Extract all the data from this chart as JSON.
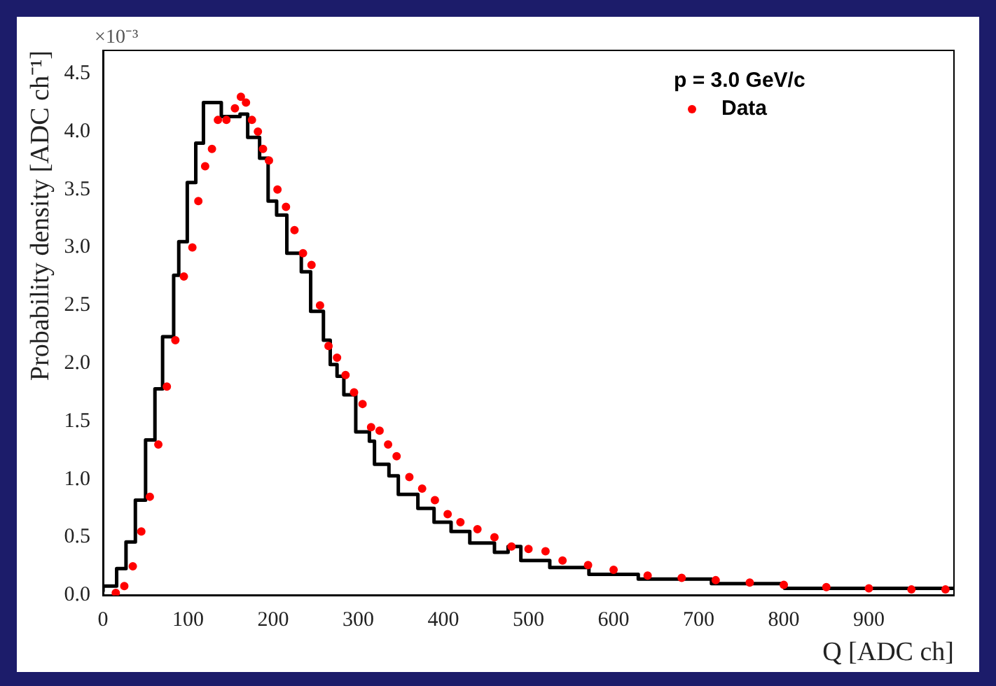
{
  "chart_data": {
    "type": "scatter",
    "xlabel": "Q [ADC ch]",
    "ylabel": "Probability density [ADC ch⁻¹]",
    "legend_title": "p = 3.0 GeV/c",
    "legend": "top right",
    "grid": false,
    "annotations": [
      "×10⁻³"
    ],
    "xlim": [
      0,
      1000
    ],
    "xticks": [
      0,
      100,
      200,
      300,
      400,
      500,
      600,
      700,
      800,
      900
    ],
    "ylim": [
      0,
      4.7
    ],
    "yticks": [
      {
        "value": 0,
        "label": "0.0"
      },
      0.5,
      {
        "value": 1,
        "label": "1.0"
      },
      1.5,
      {
        "value": 2,
        "label": "2.0"
      },
      2.5,
      {
        "value": 3,
        "label": "3.0"
      },
      3.5,
      {
        "value": 4,
        "label": "4.0"
      },
      4.5
    ],
    "series": [
      {
        "type": "step",
        "color": "#000000",
        "marker": "none",
        "x": [
          0,
          16,
          27,
          38,
          50,
          61,
          70,
          83,
          89,
          99,
          109,
          118,
          139,
          161,
          170,
          184,
          194,
          204,
          216,
          233,
          244,
          259,
          267,
          275,
          283,
          297,
          313,
          319,
          336,
          347,
          370,
          389,
          409,
          431,
          460,
          476,
          491,
          525,
          571,
          629,
          715,
          801,
          887,
          1000
        ],
        "values": [
          0.03,
          0.08,
          0.23,
          0.46,
          0.82,
          1.34,
          1.78,
          2.23,
          2.76,
          3.05,
          3.56,
          3.9,
          4.25,
          4.13,
          4.15,
          3.95,
          3.77,
          3.4,
          3.28,
          2.95,
          2.79,
          2.45,
          2.2,
          1.99,
          1.89,
          1.73,
          1.41,
          1.33,
          1.13,
          1.03,
          0.87,
          0.75,
          0.63,
          0.55,
          0.45,
          0.37,
          0.42,
          0.3,
          0.24,
          0.18,
          0.14,
          0.1,
          0.06,
          0.06
        ]
      },
      {
        "type": "scatter",
        "name": "Data",
        "color": "#ff0000",
        "marker": "circle",
        "x": [
          15,
          25,
          35,
          45,
          55,
          65,
          75,
          85,
          95,
          105,
          112,
          120,
          128,
          135,
          145,
          155,
          162,
          168,
          175,
          182,
          188,
          195,
          205,
          215,
          225,
          235,
          245,
          255,
          265,
          275,
          285,
          295,
          305,
          315,
          325,
          335,
          345,
          360,
          375,
          390,
          405,
          420,
          440,
          460,
          480,
          500,
          520,
          540,
          570,
          600,
          640,
          680,
          720,
          760,
          800,
          850,
          900,
          950,
          990
        ],
        "values": [
          0.02,
          0.08,
          0.25,
          0.55,
          0.85,
          1.3,
          1.8,
          2.2,
          2.75,
          3.0,
          3.4,
          3.7,
          3.85,
          4.1,
          4.1,
          4.2,
          4.3,
          4.25,
          4.1,
          4.0,
          3.85,
          3.75,
          3.5,
          3.35,
          3.15,
          2.95,
          2.85,
          2.5,
          2.15,
          2.05,
          1.9,
          1.75,
          1.65,
          1.45,
          1.42,
          1.3,
          1.2,
          1.02,
          0.92,
          0.82,
          0.7,
          0.63,
          0.57,
          0.5,
          0.42,
          0.4,
          0.38,
          0.3,
          0.26,
          0.22,
          0.17,
          0.15,
          0.13,
          0.11,
          0.09,
          0.07,
          0.06,
          0.05,
          0.05
        ]
      }
    ]
  }
}
